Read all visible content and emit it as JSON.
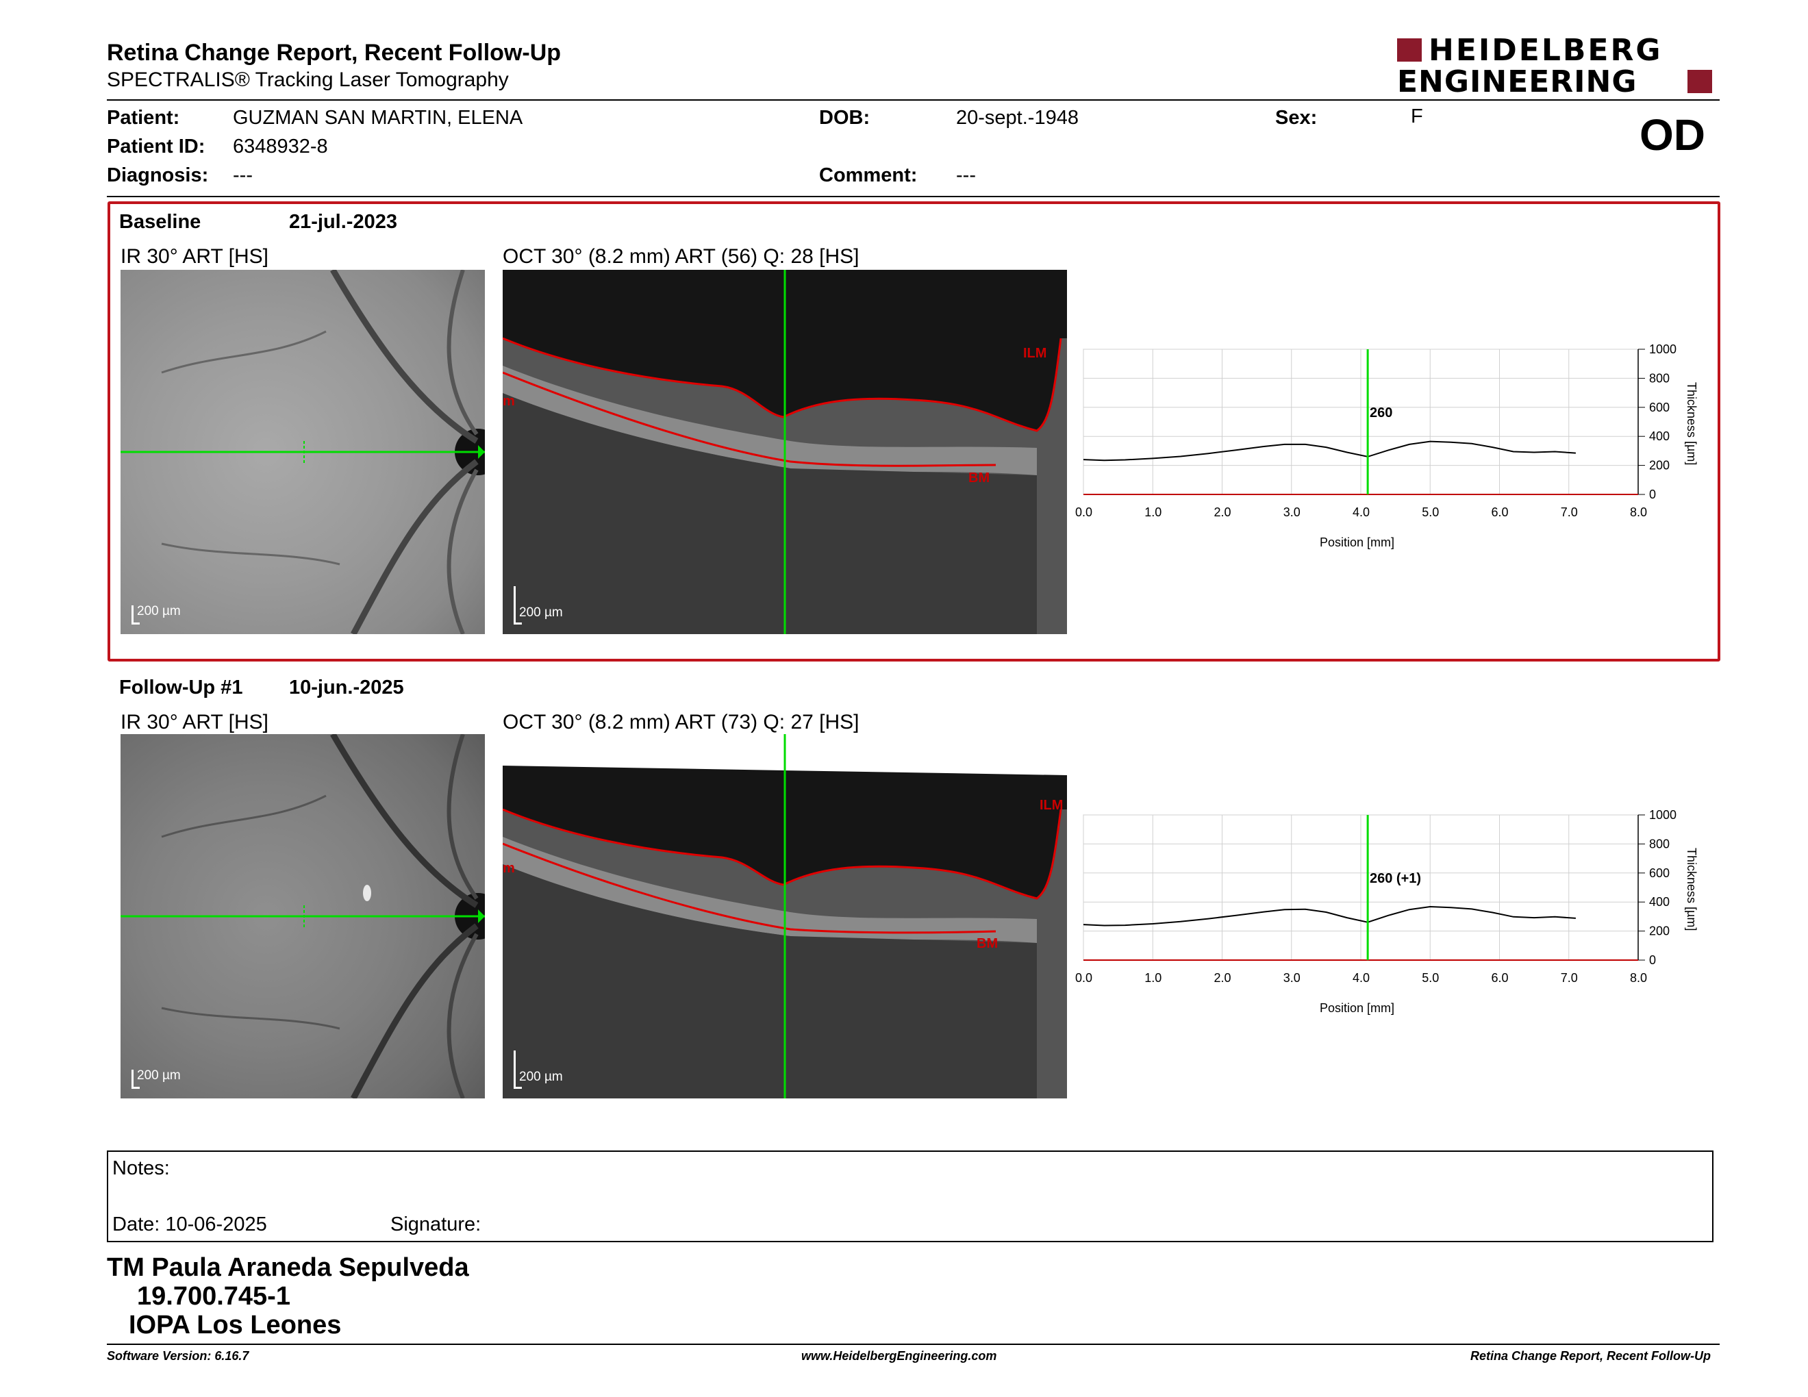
{
  "header": {
    "title": "Retina Change Report, Recent Follow-Up",
    "subtitle": "SPECTRALIS® Tracking Laser Tomography",
    "logo_line1": "HEIDELBERG",
    "logo_line2": "ENGINEERING",
    "eye": "OD"
  },
  "patient": {
    "name_label": "Patient:",
    "name": "GUZMAN SAN MARTIN, ELENA",
    "id_label": "Patient ID:",
    "id": "6348932-8",
    "diagnosis_label": "Diagnosis:",
    "diagnosis": "---",
    "dob_label": "DOB:",
    "dob": "20-sept.-1948",
    "comment_label": "Comment:",
    "comment": "---",
    "sex_label": "Sex:",
    "sex": "F"
  },
  "exams": [
    {
      "label": "Baseline",
      "date": "21-jul.-2023",
      "ir_title": "IR 30° ART [HS]",
      "oct_title": "OCT 30° (8.2 mm) ART (56) Q: 28 [HS]",
      "scale_ir": "200 µm",
      "scale_oct": "200 µm",
      "ilm": "ILM",
      "bm": "BM",
      "m": "m",
      "cursor_value": "260"
    },
    {
      "label": "Follow-Up #1",
      "date": "10-jun.-2025",
      "ir_title": "IR 30° ART [HS]",
      "oct_title": "OCT 30° (8.2 mm) ART (73) Q: 27 [HS]",
      "scale_ir": "200 µm",
      "scale_oct": "200 µm",
      "ilm": "ILM",
      "bm": "BM",
      "m": "m",
      "cursor_value": "260 (+1)"
    }
  ],
  "chart_data": [
    {
      "type": "line",
      "xlabel": "Position [mm]",
      "ylabel": "Thickness [µm]",
      "xlim": [
        0,
        8.0
      ],
      "ylim": [
        0,
        1000
      ],
      "xticks": [
        "0.0",
        "1.0",
        "2.0",
        "3.0",
        "4.0",
        "5.0",
        "6.0",
        "7.0",
        "8.0"
      ],
      "yticks": [
        "0",
        "200",
        "400",
        "600",
        "800",
        "1000"
      ],
      "cursor_x": 4.1,
      "grid": true,
      "colors": {
        "line": "#000000",
        "cursor": "#00dd00",
        "axis": "#c00000"
      },
      "series": [
        {
          "x": [
            0.0,
            0.3,
            0.6,
            1.0,
            1.4,
            1.8,
            2.2,
            2.6,
            2.9,
            3.2,
            3.5,
            3.8,
            4.1,
            4.4,
            4.7,
            5.0,
            5.3,
            5.6,
            5.9,
            6.2,
            6.5,
            6.8,
            7.1
          ],
          "y": [
            240,
            235,
            238,
            248,
            262,
            282,
            305,
            330,
            345,
            345,
            325,
            290,
            260,
            305,
            345,
            365,
            360,
            350,
            325,
            295,
            290,
            295,
            285
          ]
        }
      ]
    },
    {
      "type": "line",
      "xlabel": "Position [mm]",
      "ylabel": "Thickness [µm]",
      "xlim": [
        0,
        8.0
      ],
      "ylim": [
        0,
        1000
      ],
      "xticks": [
        "0.0",
        "1.0",
        "2.0",
        "3.0",
        "4.0",
        "5.0",
        "6.0",
        "7.0",
        "8.0"
      ],
      "yticks": [
        "0",
        "200",
        "400",
        "600",
        "800",
        "1000"
      ],
      "cursor_x": 4.1,
      "grid": true,
      "colors": {
        "line": "#000000",
        "cursor": "#00dd00",
        "axis": "#c00000"
      },
      "series": [
        {
          "x": [
            0.0,
            0.3,
            0.6,
            1.0,
            1.4,
            1.8,
            2.2,
            2.6,
            2.9,
            3.2,
            3.5,
            3.8,
            4.1,
            4.4,
            4.7,
            5.0,
            5.3,
            5.6,
            5.9,
            6.2,
            6.5,
            6.8,
            7.1
          ],
          "y": [
            245,
            238,
            240,
            250,
            265,
            285,
            308,
            332,
            348,
            350,
            330,
            292,
            261,
            308,
            348,
            368,
            362,
            352,
            328,
            298,
            292,
            298,
            288
          ]
        }
      ]
    }
  ],
  "notes": {
    "notes_label": "Notes:",
    "date_label": "Date: 10-06-2025",
    "signature_label": "Signature:"
  },
  "signer": {
    "name": "TM Paula Araneda Sepulveda",
    "rut": "19.700.745-1",
    "center": "IOPA Los Leones"
  },
  "footer": {
    "version": "Software Version: 6.16.7",
    "website": "www.HeidelbergEngineering.com",
    "report": "Retina Change Report, Recent Follow-Up"
  }
}
